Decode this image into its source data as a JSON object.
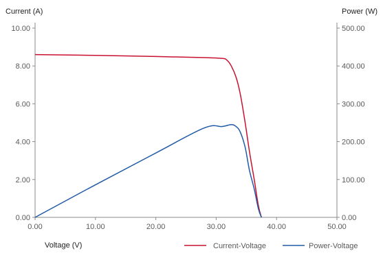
{
  "chart_data": {
    "type": "line",
    "y_axis_left": {
      "label": "Current (A)",
      "range": [
        0,
        10
      ],
      "ticks": [
        "0.00",
        "2.00",
        "4.00",
        "6.00",
        "8.00",
        "10.00"
      ]
    },
    "y_axis_right": {
      "label": "Power (W)",
      "range": [
        0,
        500
      ],
      "ticks": [
        "0.00",
        "100.00",
        "200.00",
        "300.00",
        "400.00",
        "500.00"
      ]
    },
    "x_axis": {
      "label": "Voltage (V)",
      "range": [
        0,
        50
      ],
      "ticks": [
        "0.00",
        "10.00",
        "20.00",
        "30.00",
        "40.00",
        "50.00"
      ]
    },
    "grid": false,
    "legend_position": "bottom-right",
    "series": [
      {
        "name": "Current-Voltage",
        "axis": "left",
        "color": "#c8102e",
        "x": [
          0,
          10,
          20,
          28,
          31,
          31.8,
          32.5,
          33.3,
          34.0,
          34.8,
          35.5,
          36.3,
          37.0,
          37.5
        ],
        "y": [
          8.6,
          8.56,
          8.5,
          8.44,
          8.4,
          8.3,
          8.0,
          7.4,
          6.5,
          5.0,
          3.5,
          2.0,
          0.6,
          0.0
        ]
      },
      {
        "name": "Power-Voltage",
        "axis": "right",
        "color": "#1f5aa6",
        "x": [
          0,
          10,
          20,
          28,
          31,
          32.5,
          33.3,
          34.0,
          34.8,
          35.5,
          36.3,
          37.0,
          37.5
        ],
        "y": [
          0,
          86,
          170,
          236,
          240,
          245,
          240,
          225,
          185,
          125,
          75,
          22,
          0
        ]
      }
    ]
  }
}
